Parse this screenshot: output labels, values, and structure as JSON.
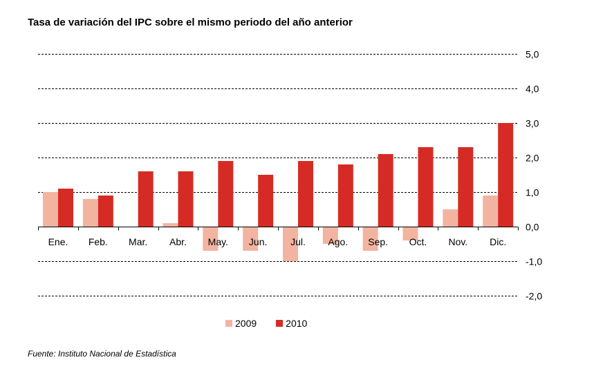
{
  "title": "Tasa de variación del IPC sobre el mismo periodo del año anterior",
  "source": "Fuente: Instituto Nacional de Estadística",
  "colors": {
    "s2009": "#f2b4a0",
    "s2010": "#d62b24",
    "grid": "#000000"
  },
  "chart_data": {
    "type": "bar",
    "categories": [
      "Ene.",
      "Feb.",
      "Mar.",
      "Abr.",
      "May.",
      "Jun.",
      "Jul.",
      "Ago.",
      "Sep.",
      "Oct.",
      "Nov.",
      "Dic."
    ],
    "series": [
      {
        "name": "2009",
        "values": [
          1.0,
          0.8,
          0.0,
          0.1,
          -0.7,
          -0.7,
          -1.0,
          -0.5,
          -0.7,
          -0.4,
          0.5,
          0.9
        ]
      },
      {
        "name": "2010",
        "values": [
          1.1,
          0.9,
          1.6,
          1.6,
          1.9,
          1.5,
          1.9,
          1.8,
          2.1,
          2.3,
          2.3,
          3.0
        ]
      }
    ],
    "ylim": [
      -2,
      5
    ],
    "yticks": [
      "-2,0",
      "-1,0",
      "0,0",
      "1,0",
      "2,0",
      "3,0",
      "4,0",
      "5,0"
    ],
    "ytick_values": [
      -2,
      -1,
      0,
      1,
      2,
      3,
      4,
      5
    ],
    "grid": "dashed horizontal",
    "y_axis_side": "right",
    "legend_position": "bottom"
  }
}
